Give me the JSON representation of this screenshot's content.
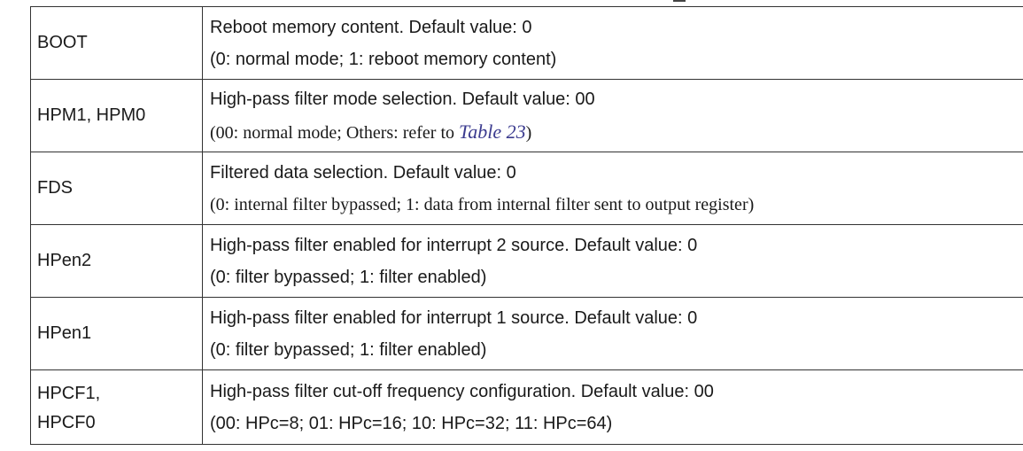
{
  "rows": [
    {
      "name": "BOOT",
      "desc1": "Reboot memory content. Default value: 0",
      "desc2": "(0: normal mode; 1: reboot memory content)"
    },
    {
      "name": "HPM1, HPM0",
      "desc1": "High-pass filter mode selection. Default value: 00",
      "desc2_pre": "(00: normal mode; Others: refer to ",
      "desc2_link": "Table 23",
      "desc2_post": ")"
    },
    {
      "name": "FDS",
      "desc1": "Filtered data selection. Default value: 0",
      "desc2": "(0: internal filter bypassed; 1: data from internal filter sent to output register)"
    },
    {
      "name": "HPen2",
      "desc1": "High-pass filter enabled for interrupt 2 source. Default value: 0",
      "desc2": "(0: filter bypassed; 1: filter enabled)"
    },
    {
      "name": "HPen1",
      "desc1": "High-pass filter enabled for interrupt 1 source. Default value: 0",
      "desc2": "(0: filter bypassed; 1: filter enabled)"
    },
    {
      "name_line1": "HPCF1,",
      "name_line2": "HPCF0",
      "desc1": "High-pass filter cut-off frequency configuration. Default value: 00",
      "desc2": "(00: HPc=8; 01: HPc=16; 10: HPc=32; 11: HPc=64)"
    }
  ]
}
